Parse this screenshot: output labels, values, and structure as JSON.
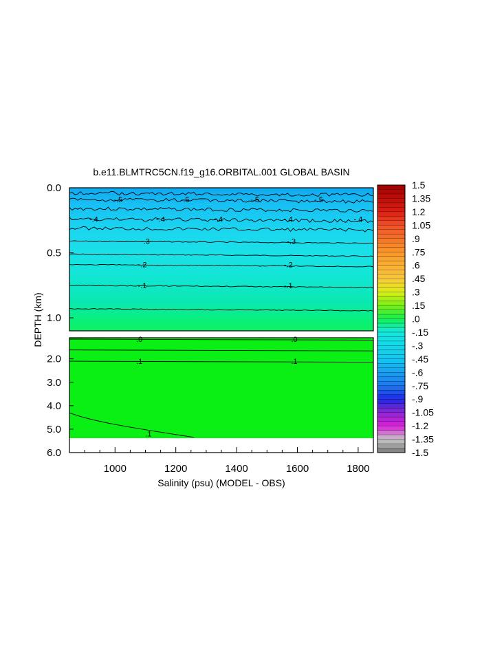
{
  "chart_data": {
    "type": "contour",
    "title": "b.e11.BLMTRC5CN.f19_g16.ORBITAL.001 GLOBAL BASIN",
    "xlabel": "Salinity (psu) (MODEL - OBS)",
    "ylabel": "DEPTH (km)",
    "xlim": [
      850,
      1850
    ],
    "x_ticks": [
      1000,
      1200,
      1400,
      1600,
      1800
    ],
    "upper_panel": {
      "ylim": [
        0.0,
        1.1
      ],
      "y_ticks": [
        0.0,
        0.5,
        1.0
      ]
    },
    "lower_panel": {
      "ylim": [
        1.1,
        6.0
      ],
      "y_ticks": [
        2.0,
        3.0,
        4.0,
        5.0,
        6.0
      ]
    },
    "grid": false,
    "legend": "colorbar-right",
    "colorbar": {
      "min": -1.5,
      "max": 1.5,
      "step": 0.05,
      "labels": [
        "1.5",
        "1.35",
        "1.2",
        "1.05",
        ".9",
        ".75",
        ".6",
        ".45",
        ".3",
        ".15",
        ".0",
        "-.15",
        "-.3",
        "-.45",
        "-.6",
        "-.75",
        "-.9",
        "-1.05",
        "-1.2",
        "-1.35",
        "-1.5"
      ]
    },
    "contours_upper": [
      {
        "depth": 0.04,
        "value": "-.6",
        "label": "",
        "labels_x": []
      },
      {
        "depth": 0.09,
        "value": "-.5",
        "label": "-.5",
        "labels_x": [
          1010,
          1230,
          1460,
          1670
        ]
      },
      {
        "depth": 0.16,
        "value": "-.5",
        "label": "",
        "labels_x": []
      },
      {
        "depth": 0.24,
        "value": "-.4",
        "label": "-.4",
        "labels_x": [
          930,
          1150,
          1340,
          1570,
          1800
        ]
      },
      {
        "depth": 0.31,
        "value": "-.4",
        "label": "",
        "labels_x": []
      },
      {
        "depth": 0.41,
        "value": "-.3",
        "label": "-.3",
        "labels_x": [
          1100,
          1580
        ]
      },
      {
        "depth": 0.51,
        "value": "-.2",
        "label": "",
        "labels_x": []
      },
      {
        "depth": 0.59,
        "value": "-.2",
        "label": "-.2",
        "labels_x": [
          1090,
          1570
        ]
      },
      {
        "depth": 0.75,
        "value": "-.1",
        "label": "-.1",
        "labels_x": [
          1090,
          1570
        ]
      },
      {
        "depth": 0.93,
        "value": ".0",
        "label": "",
        "labels_x": []
      }
    ],
    "contours_lower": [
      {
        "depth": 1.16,
        "value": ".0",
        "label": ".0",
        "labels_x": [
          1080,
          1590
        ]
      },
      {
        "depth": 1.62,
        "value": ".1",
        "label": "",
        "labels_x": []
      },
      {
        "depth": 2.1,
        "value": ".1",
        "label": ".1",
        "labels_x": [
          1080,
          1590
        ]
      },
      {
        "depth": 4.3,
        "value": ".1",
        "label": ".1",
        "labels_x": [
          1110
        ]
      }
    ],
    "bottom_mask_depth": 5.35
  }
}
